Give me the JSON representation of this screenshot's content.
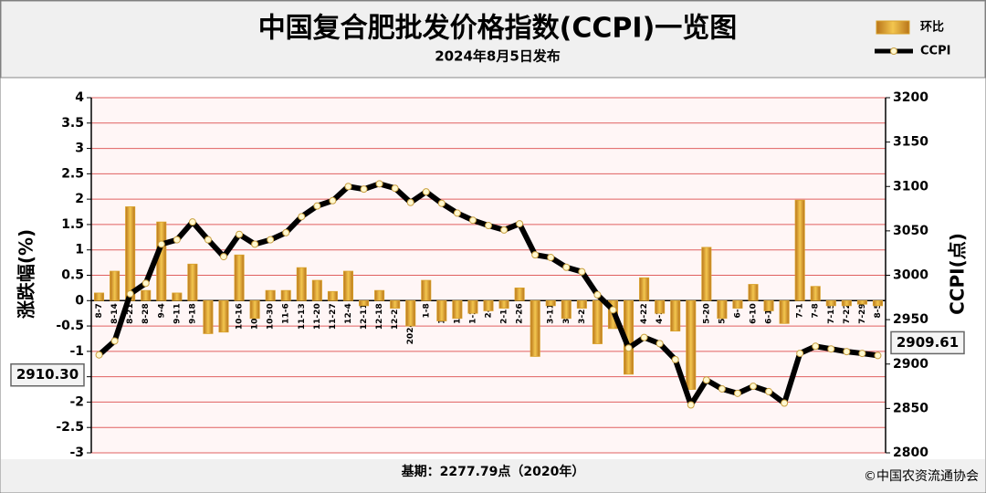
{
  "chart_data": {
    "type": "bar-line",
    "title": "中国复合肥批发价格指数(CCPI)一览图",
    "subtitle": "2024年8月5日发布",
    "y_label": "涨跌幅(%)",
    "y2_label": "CCPI(点)",
    "base_note": "基期：2277.79点（2020年）",
    "source": "©中国农资流通协会",
    "categories": [
      "8-7",
      "8-14",
      "8-21",
      "8-28",
      "9-4",
      "9-11",
      "9-18",
      "9-25",
      "10-9",
      "10-16",
      "10-23",
      "10-30",
      "11-6",
      "11-13",
      "11-20",
      "11-27",
      "12-4",
      "12-11",
      "12-18",
      "12-25",
      "2024-1-1",
      "1-8",
      "1-15",
      "1-22",
      "1-29",
      "2-5",
      "2-19",
      "2-26",
      "3-4",
      "3-11",
      "3-18",
      "3-25",
      "4-1",
      "4-8",
      "4-15",
      "4-22",
      "4-29",
      "5-6",
      "5-13",
      "5-20",
      "5-27",
      "6-3",
      "6-10",
      "6-17",
      "6-24",
      "7-1",
      "7-8",
      "7-15",
      "7-22",
      "7-29",
      "8-5"
    ],
    "series": [
      {
        "name": "环比",
        "color": "#d9a22b",
        "axis": "y",
        "values": [
          0.15,
          0.58,
          1.85,
          0.2,
          1.55,
          0.15,
          0.72,
          -0.65,
          -0.62,
          0.9,
          -0.35,
          0.2,
          0.2,
          0.65,
          0.4,
          0.18,
          0.58,
          -0.1,
          0.2,
          -0.15,
          -0.5,
          0.4,
          -0.4,
          -0.35,
          -0.25,
          -0.2,
          -0.15,
          0.25,
          -1.1,
          -0.1,
          -0.35,
          -0.15,
          -0.85,
          -0.55,
          -1.45,
          0.45,
          -0.25,
          -0.6,
          -1.75,
          1.05,
          -0.35,
          -0.15,
          0.32,
          -0.2,
          -0.45,
          1.98,
          0.28,
          -0.1,
          -0.1,
          -0.07,
          -0.1
        ]
      },
      {
        "name": "CCPI",
        "color": "#000000",
        "axis": "y2",
        "values": [
          2910.3,
          2926,
          2979,
          2991,
          3035,
          3040,
          3060,
          3040,
          3021,
          3046,
          3035,
          3040,
          3048,
          3066,
          3078,
          3084,
          3100,
          3097,
          3103,
          3098,
          3082,
          3094,
          3081,
          3070,
          3062,
          3056,
          3051,
          3058,
          3023,
          3020,
          3009,
          3004,
          2978,
          2961,
          2918,
          2930,
          2923,
          2905,
          2854,
          2882,
          2872,
          2867,
          2875,
          2869,
          2856,
          2912,
          2920,
          2917,
          2914,
          2912,
          2909.61
        ],
        "value_labels": [
          "2910.30",
          null,
          null,
          null,
          null,
          null,
          null,
          null,
          null,
          null,
          null,
          null,
          null,
          null,
          null,
          null,
          null,
          null,
          null,
          null,
          null,
          null,
          null,
          null,
          null,
          null,
          null,
          null,
          null,
          null,
          null,
          null,
          null,
          null,
          null,
          null,
          null,
          null,
          null,
          null,
          null,
          null,
          null,
          null,
          null,
          null,
          null,
          null,
          null,
          null,
          "2909.61"
        ]
      }
    ],
    "ylim": [
      -3,
      4
    ],
    "yticks": [
      -3,
      -2.5,
      -2,
      -1.5,
      -1,
      -0.5,
      0,
      0.5,
      1,
      1.5,
      2,
      2.5,
      3,
      3.5,
      4
    ],
    "y2lim": [
      2800,
      3200
    ],
    "y2ticks": [
      2800,
      2850,
      2900,
      2950,
      3000,
      3050,
      3100,
      3150,
      3200
    ],
    "grid": true
  }
}
